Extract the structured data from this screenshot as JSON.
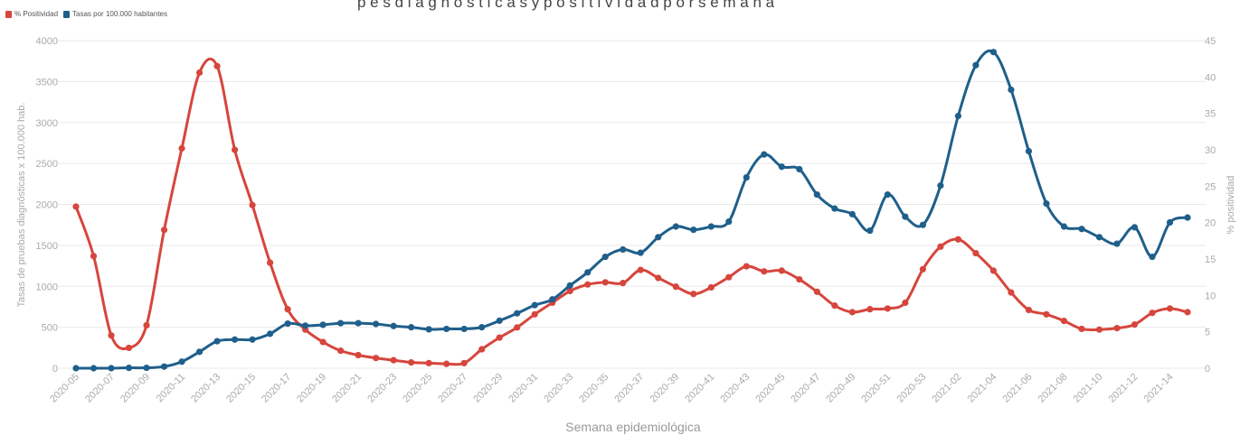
{
  "title_fragment": "p e s  d i a g n ó s t i c a s  y  p o s i t i v i d a d  p o r  s e m a n a",
  "legend": [
    {
      "label": "% Positividad",
      "color": "#d6463d"
    },
    {
      "label": "Tasas por 100.000 habitantes",
      "color": "#1f5f8b"
    }
  ],
  "colors": {
    "positividad": "#d6463d",
    "tasas": "#1f5f8b",
    "grid": "#e9e9e9"
  },
  "chart_data": {
    "type": "line",
    "xlabel": "Semana epidemiológica",
    "ylabel_left": "Tasas de pruebas diagnósticas x 100.000 hab.",
    "ylabel_right": "% positividad",
    "ylim_left": [
      0,
      4000
    ],
    "ylim_right": [
      0,
      45
    ],
    "yticks_left": [
      0,
      500,
      1000,
      1500,
      2000,
      2500,
      3000,
      3500,
      4000
    ],
    "yticks_right": [
      0,
      5,
      10,
      15,
      20,
      25,
      30,
      35,
      40,
      45
    ],
    "grid": "horizontal",
    "legend_position": "top-left",
    "x": [
      "2020-05",
      "2020-06",
      "2020-07",
      "2020-08",
      "2020-09",
      "2020-10",
      "2020-11",
      "2020-12",
      "2020-13",
      "2020-14",
      "2020-15",
      "2020-16",
      "2020-17",
      "2020-18",
      "2020-19",
      "2020-20",
      "2020-21",
      "2020-22",
      "2020-23",
      "2020-24",
      "2020-25",
      "2020-26",
      "2020-27",
      "2020-28",
      "2020-29",
      "2020-30",
      "2020-31",
      "2020-32",
      "2020-33",
      "2020-34",
      "2020-35",
      "2020-36",
      "2020-37",
      "2020-38",
      "2020-39",
      "2020-40",
      "2020-41",
      "2020-42",
      "2020-43",
      "2020-44",
      "2020-45",
      "2020-46",
      "2020-47",
      "2020-48",
      "2020-49",
      "2020-50",
      "2020-51",
      "2020-52",
      "2020-53",
      "2021-01",
      "2021-02",
      "2021-03",
      "2021-04",
      "2021-05",
      "2021-06",
      "2021-07",
      "2021-08",
      "2021-09",
      "2021-10",
      "2021-11",
      "2021-12",
      "2021-13",
      "2021-14",
      "2021-15"
    ],
    "xtick_labels": [
      "2020-05",
      "2020-07",
      "2020-09",
      "2020-11",
      "2020-13",
      "2020-15",
      "2020-17",
      "2020-19",
      "2020-21",
      "2020-23",
      "2020-25",
      "2020-27",
      "2020-29",
      "2020-31",
      "2020-33",
      "2020-35",
      "2020-37",
      "2020-39",
      "2020-41",
      "2020-43",
      "2020-45",
      "2020-47",
      "2020-49",
      "2020-51",
      "2020-53",
      "2021-02",
      "2021-04",
      "2021-06",
      "2021-08",
      "2021-10",
      "2021-12",
      "2021-14"
    ],
    "series": [
      {
        "name": "% Positividad",
        "axis": "right",
        "values": [
          22.2,
          15.4,
          4.5,
          2.8,
          5.9,
          19,
          30.2,
          40.6,
          41.5,
          30,
          22.4,
          14.5,
          8.1,
          5.3,
          3.6,
          2.4,
          1.8,
          1.4,
          1.1,
          0.8,
          0.7,
          0.6,
          0.7,
          2.6,
          4.2,
          5.6,
          7.4,
          9,
          10.6,
          11.5,
          11.8,
          11.7,
          13.5,
          12.4,
          11.2,
          10.2,
          11.1,
          12.5,
          14,
          13.3,
          13.4,
          12.2,
          10.5,
          8.6,
          7.7,
          8.1,
          8.2,
          9,
          13.6,
          16.7,
          17.7,
          15.8,
          13.4,
          10.4,
          8,
          7.4,
          6.5,
          5.4,
          5.3,
          5.5,
          6,
          7.6,
          8.2,
          7.7
        ]
      },
      {
        "name": "Tasas por 100.000 habitantes",
        "axis": "left",
        "values": [
          0,
          0,
          0,
          5,
          5,
          20,
          80,
          200,
          330,
          350,
          350,
          420,
          545,
          520,
          530,
          550,
          550,
          540,
          515,
          500,
          475,
          480,
          480,
          500,
          580,
          670,
          770,
          840,
          1010,
          1170,
          1360,
          1450,
          1410,
          1600,
          1730,
          1690,
          1730,
          1790,
          2330,
          2610,
          2460,
          2430,
          2120,
          1950,
          1880,
          1680,
          2120,
          1850,
          1750,
          2230,
          3080,
          3700,
          3860,
          3400,
          2650,
          2010,
          1730,
          1700,
          1600,
          1520,
          1720,
          1360,
          1780,
          1840
        ]
      }
    ]
  }
}
